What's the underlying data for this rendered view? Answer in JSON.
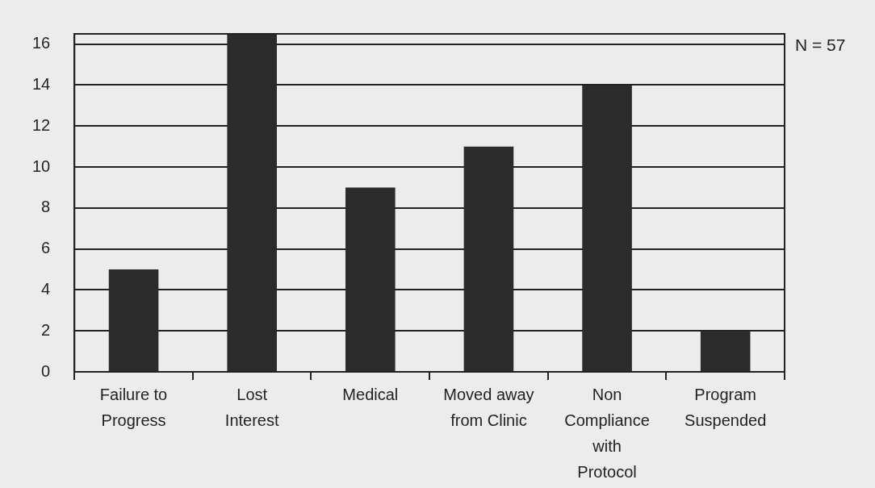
{
  "chart_data": {
    "type": "bar",
    "categories": [
      "Failure to\nProgress",
      "Lost\nInterest",
      "Medical",
      "Moved away\nfrom Clinic",
      "Non\nCompliance\nwith\nProtocol",
      "Program\nSuspended"
    ],
    "values": [
      5,
      16.5,
      9,
      11,
      14,
      2
    ],
    "color": "#2b2b2b",
    "ylim": [
      0,
      16.5
    ],
    "yticks": [
      0,
      2,
      4,
      6,
      8,
      10,
      12,
      14,
      16
    ],
    "grid": "y",
    "legend": false,
    "annotations": [
      "N = 57"
    ]
  }
}
